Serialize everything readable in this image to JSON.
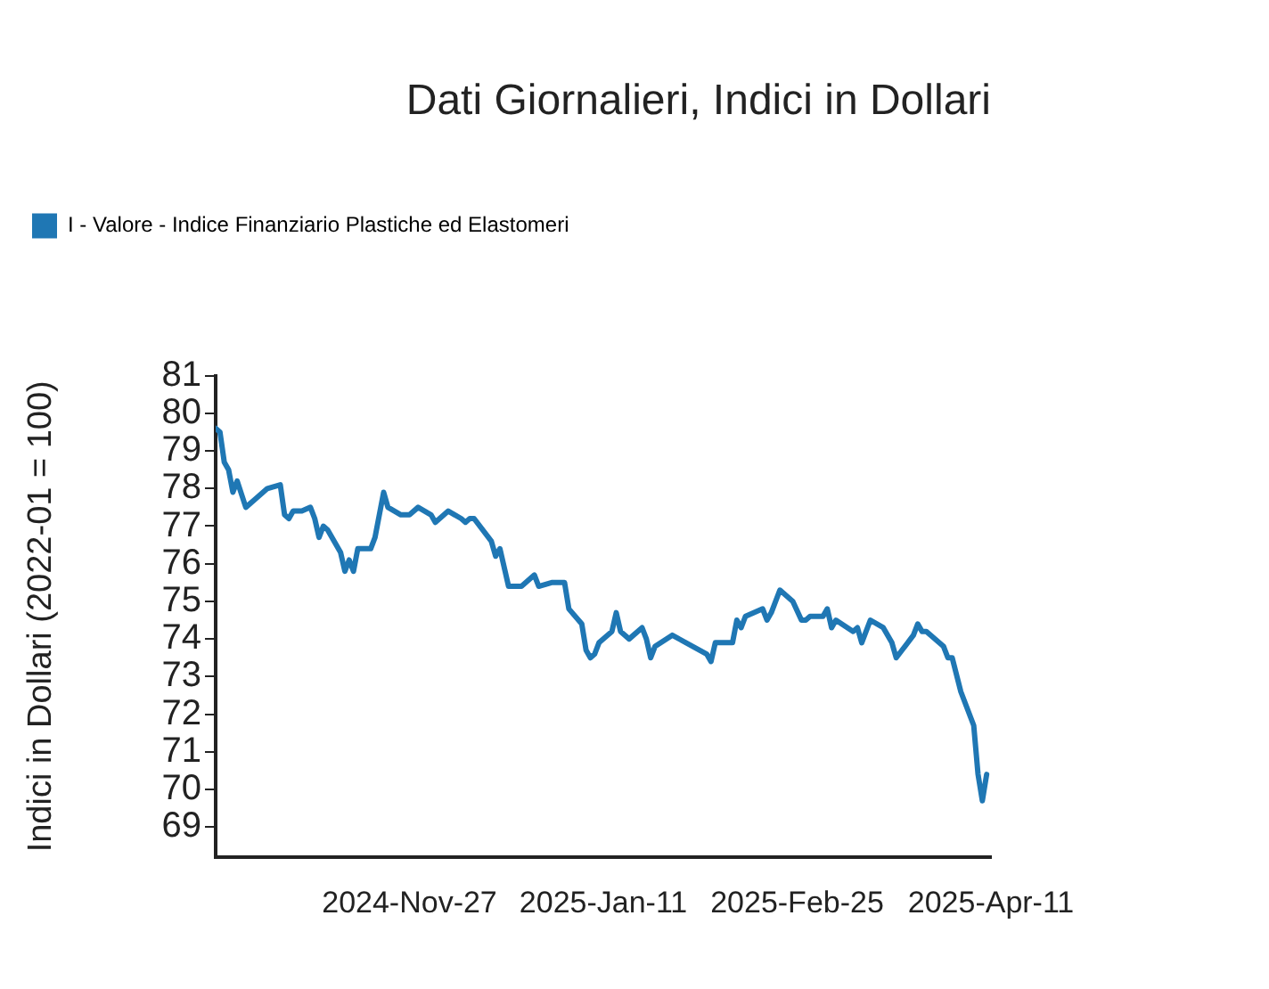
{
  "chart_data": {
    "type": "line",
    "title": "Dati Giornalieri, Indici in Dollari",
    "ylabel": "Indici in Dollari (2022-01 = 100)",
    "xlim": [
      "2024-10-13",
      "2025-04-11"
    ],
    "xticks": [
      {
        "value": "2024-10-13",
        "label": null
      },
      {
        "value": "2024-11-27",
        "label": "2024-Nov-27"
      },
      {
        "value": "2025-01-11",
        "label": "2025-Jan-11"
      },
      {
        "value": "2025-02-25",
        "label": "2025-Feb-25"
      },
      {
        "value": "2025-04-11",
        "label": "2025-Apr-11"
      }
    ],
    "ylim": [
      68.2,
      81
    ],
    "yticks": [
      69,
      70,
      71,
      72,
      73,
      74,
      75,
      76,
      77,
      78,
      79,
      80,
      81
    ],
    "grid": false,
    "legend": "top left",
    "marker": "none",
    "line_style": "solid",
    "x": [
      "2024-10-13",
      "2024-10-14",
      "2024-10-15",
      "2024-10-16",
      "2024-10-17",
      "2024-10-18",
      "2024-10-20",
      "2024-10-22",
      "2024-10-23",
      "2024-10-25",
      "2024-10-28",
      "2024-10-29",
      "2024-10-30",
      "2024-10-31",
      "2024-11-02",
      "2024-11-04",
      "2024-11-05",
      "2024-11-06",
      "2024-11-07",
      "2024-11-08",
      "2024-11-11",
      "2024-11-12",
      "2024-11-13",
      "2024-11-14",
      "2024-11-15",
      "2024-11-18",
      "2024-11-19",
      "2024-11-21",
      "2024-11-22",
      "2024-11-25",
      "2024-11-27",
      "2024-11-29",
      "2024-12-02",
      "2024-12-03",
      "2024-12-06",
      "2024-12-09",
      "2024-12-10",
      "2024-12-11",
      "2024-12-12",
      "2024-12-16",
      "2024-12-17",
      "2024-12-18",
      "2024-12-20",
      "2024-12-23",
      "2024-12-26",
      "2024-12-27",
      "2024-12-30",
      "2024-12-31",
      "2025-01-02",
      "2025-01-03",
      "2025-01-06",
      "2025-01-07",
      "2025-01-08",
      "2025-01-09",
      "2025-01-10",
      "2025-01-13",
      "2025-01-14",
      "2025-01-15",
      "2025-01-17",
      "2025-01-20",
      "2025-01-21",
      "2025-01-22",
      "2025-01-23",
      "2025-01-27",
      "2025-02-04",
      "2025-02-05",
      "2025-02-06",
      "2025-02-10",
      "2025-02-11",
      "2025-02-12",
      "2025-02-13",
      "2025-02-17",
      "2025-02-18",
      "2025-02-19",
      "2025-02-21",
      "2025-02-24",
      "2025-02-26",
      "2025-02-27",
      "2025-02-28",
      "2025-03-03",
      "2025-03-04",
      "2025-03-05",
      "2025-03-06",
      "2025-03-10",
      "2025-03-11",
      "2025-03-12",
      "2025-03-14",
      "2025-03-17",
      "2025-03-19",
      "2025-03-20",
      "2025-03-24",
      "2025-03-25",
      "2025-03-26",
      "2025-03-27",
      "2025-03-31",
      "2025-04-01",
      "2025-04-02",
      "2025-04-04",
      "2025-04-07",
      "2025-04-08",
      "2025-04-09",
      "2025-04-10"
    ],
    "series": [
      {
        "name": "I - Valore - Indice Finanziario Plastiche ed Elastomeri",
        "color": "#1f77b4",
        "values": [
          79.6,
          79.5,
          78.7,
          78.5,
          77.9,
          78.2,
          77.5,
          77.7,
          77.8,
          78.0,
          78.1,
          77.3,
          77.2,
          77.4,
          77.4,
          77.5,
          77.2,
          76.7,
          77.0,
          76.9,
          76.3,
          75.8,
          76.1,
          75.8,
          76.4,
          76.4,
          76.7,
          77.9,
          77.5,
          77.3,
          77.3,
          77.5,
          77.3,
          77.1,
          77.4,
          77.2,
          77.1,
          77.2,
          77.2,
          76.6,
          76.2,
          76.4,
          75.4,
          75.4,
          75.7,
          75.4,
          75.5,
          75.5,
          75.5,
          74.8,
          74.4,
          73.7,
          73.5,
          73.6,
          73.9,
          74.2,
          74.7,
          74.2,
          74.0,
          74.3,
          74.0,
          73.5,
          73.8,
          74.1,
          73.6,
          73.4,
          73.9,
          73.9,
          74.5,
          74.3,
          74.6,
          74.8,
          74.5,
          74.7,
          75.3,
          75.0,
          74.5,
          74.5,
          74.6,
          74.6,
          74.8,
          74.3,
          74.5,
          74.2,
          74.3,
          73.9,
          74.5,
          74.3,
          73.9,
          73.5,
          74.1,
          74.4,
          74.2,
          74.2,
          73.8,
          73.5,
          73.5,
          72.6,
          71.7,
          70.4,
          69.7,
          70.4
        ]
      }
    ]
  }
}
